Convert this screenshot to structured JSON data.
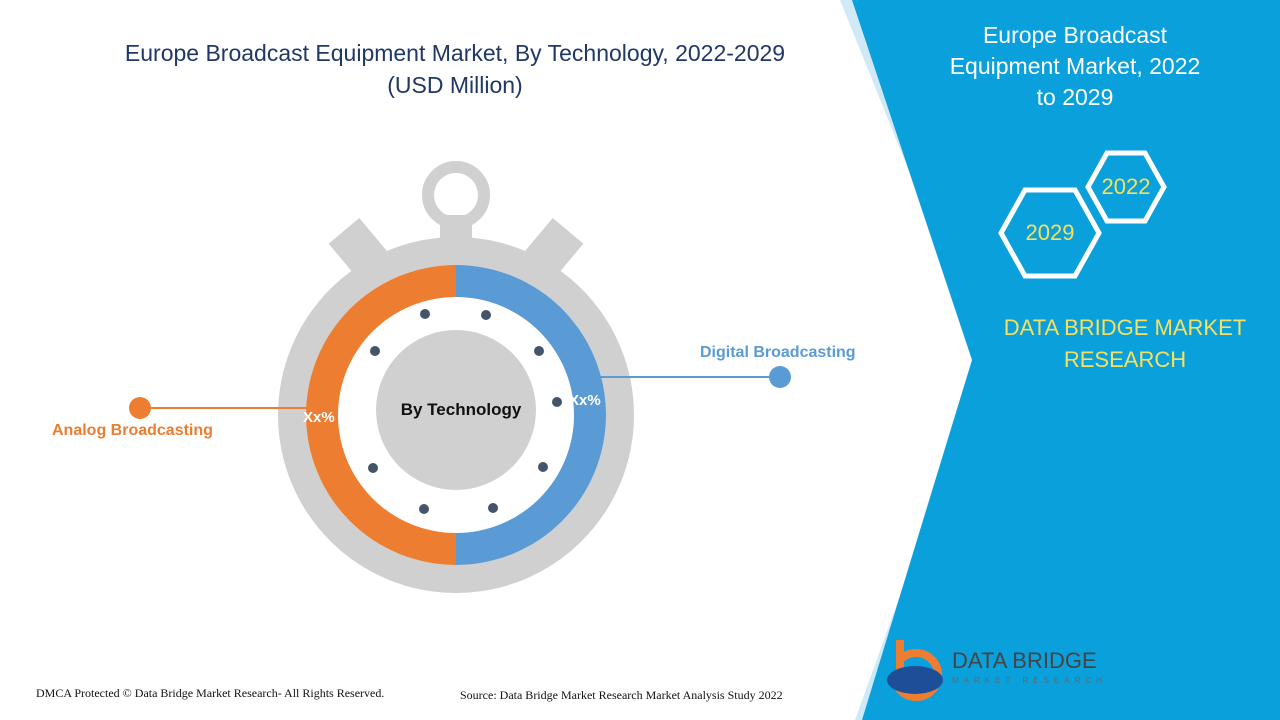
{
  "title": "Europe Broadcast Equipment Market, By Technology, 2022-2029",
  "subtitle": "(USD Million)",
  "center_label": "By Technology",
  "segments": [
    {
      "name": "Analog Broadcasting",
      "label": "Xx%",
      "color": "#ed7d31"
    },
    {
      "name": "Digital Broadcasting",
      "label": "Xx%",
      "color": "#5b9bd5"
    }
  ],
  "side_panel": {
    "title": "Europe Broadcast Equipment Market, 2022 to 2029",
    "years": [
      "2022",
      "2029"
    ],
    "brand": "DATA BRIDGE MARKET RESEARCH"
  },
  "logo": {
    "name": "DATA BRIDGE",
    "tagline": "MARKET RESEARCH"
  },
  "footer": {
    "copyright": "DMCA Protected © Data Bridge Market Research- All Rights Reserved.",
    "source": "Source: Data Bridge Market Research Market Analysis Study 2022"
  }
}
